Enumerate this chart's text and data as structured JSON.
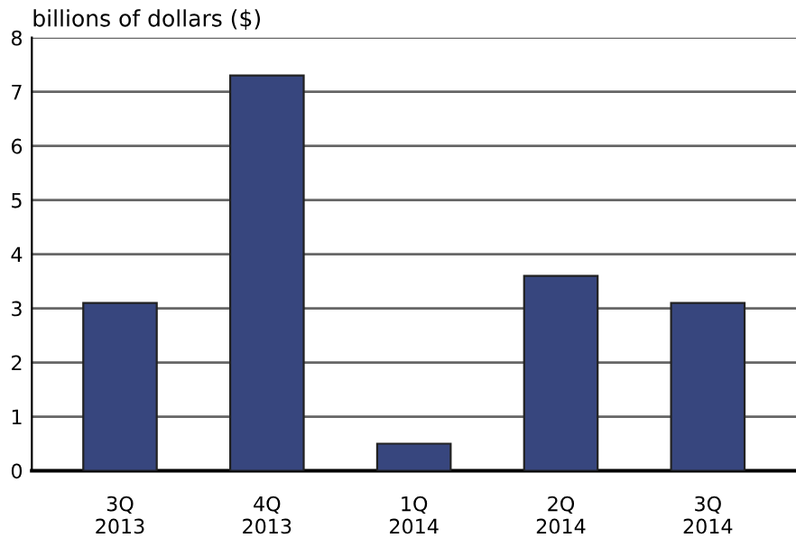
{
  "chart_data": {
    "type": "bar",
    "ylabel": "billions of dollars ($)",
    "categories": [
      "3Q\n2013",
      "4Q\n2013",
      "1Q\n2014",
      "2Q\n2014",
      "3Q\n2014"
    ],
    "values": [
      3.1,
      7.3,
      0.5,
      3.6,
      3.1
    ],
    "color": "#37467e",
    "ylim": [
      0,
      8
    ],
    "yticks": [
      0,
      1,
      2,
      3,
      4,
      5,
      6,
      7,
      8
    ],
    "grid": "y"
  }
}
